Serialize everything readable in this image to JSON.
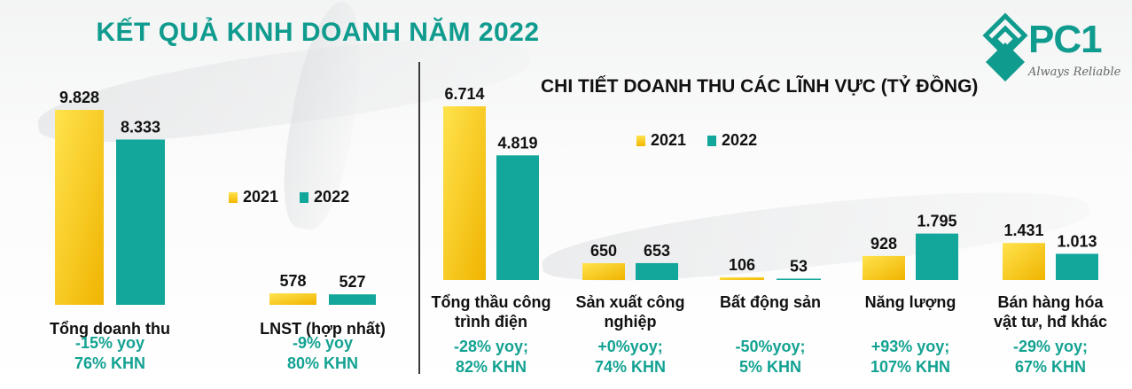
{
  "title": "KẾT QUẢ KINH DOANH NĂM 2022",
  "subtitle": "CHI TIẾT DOANH THU CÁC LĨNH VỰC (TỶ ĐỒNG)",
  "logo": {
    "text": "PC1",
    "tagline": "Always Reliable"
  },
  "colors": {
    "y2021": "#f5c400",
    "y2022": "#12a79a",
    "accent": "#0f9b8e"
  },
  "legend": [
    "2021",
    "2022"
  ],
  "chart_data": [
    {
      "type": "bar",
      "categories": [
        "Tổng doanh thu",
        "LNST (hợp nhất)"
      ],
      "series": [
        {
          "name": "2021",
          "values": [
            9828,
            578
          ],
          "labels": [
            "9.828",
            "578"
          ]
        },
        {
          "name": "2022",
          "values": [
            8333,
            527
          ],
          "labels": [
            "8.333",
            "527"
          ]
        }
      ],
      "notes": [
        [
          "-15% yoy",
          "76% KHN"
        ],
        [
          "-9% yoy",
          "80% KHN"
        ]
      ],
      "ylim": [
        0,
        10500
      ]
    },
    {
      "type": "bar",
      "title": "CHI TIẾT DOANH THU CÁC LĨNH VỰC (TỶ ĐỒNG)",
      "categories": [
        [
          "Tổng thầu công",
          "trình điện"
        ],
        [
          "Sản xuất công",
          "nghiệp"
        ],
        [
          "Bất động sản"
        ],
        [
          "Năng lượng"
        ],
        [
          "Bán hàng hóa",
          "vật tư, hđ khác"
        ]
      ],
      "series": [
        {
          "name": "2021",
          "values": [
            6714,
            650,
            106,
            928,
            1431
          ],
          "labels": [
            "6.714",
            "650",
            "106",
            "928",
            "1.431"
          ]
        },
        {
          "name": "2022",
          "values": [
            4819,
            653,
            53,
            1795,
            1013
          ],
          "labels": [
            "4.819",
            "653",
            "53",
            "1.795",
            "1.013"
          ]
        }
      ],
      "notes": [
        [
          "-28% yoy;",
          "82% KHN"
        ],
        [
          "+0%yoy;",
          "74% KHN"
        ],
        [
          "-50%yoy;",
          "5% KHN"
        ],
        [
          "+93% yoy;",
          "107% KHN"
        ],
        [
          "-29% yoy;",
          "67% KHN"
        ]
      ],
      "ylim": [
        0,
        7250
      ]
    }
  ]
}
